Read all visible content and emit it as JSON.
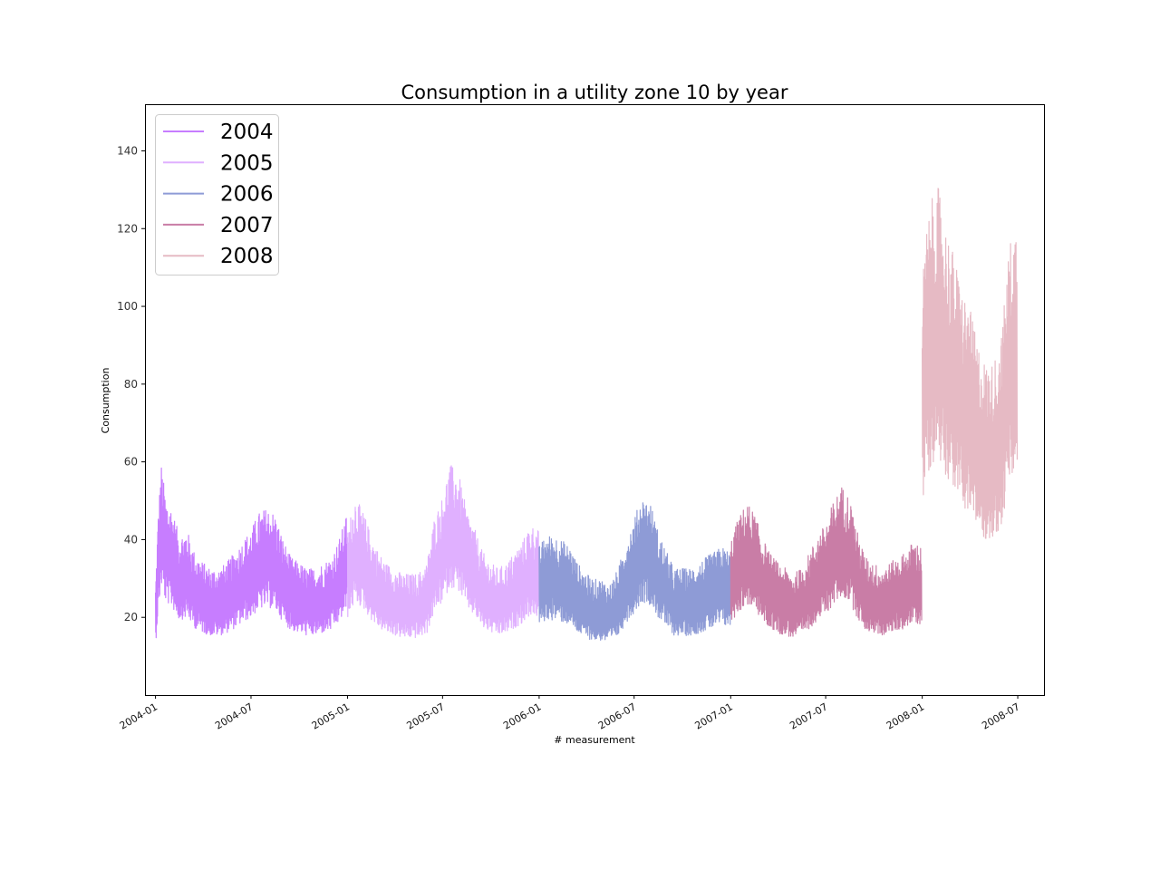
{
  "chart_data": {
    "type": "line",
    "title": "Consumption in a utility zone 10 by year",
    "xlabel": "# measurement",
    "ylabel": "Consumption",
    "x_ticks": [
      "2004-01",
      "2004-07",
      "2005-01",
      "2005-07",
      "2006-01",
      "2006-07",
      "2007-01",
      "2007-07",
      "2008-01",
      "2008-07"
    ],
    "y_ticks": [
      20,
      40,
      60,
      80,
      100,
      120,
      140
    ],
    "xlim": [
      "2003-12-12",
      "2008-08-20"
    ],
    "ylim": [
      0,
      152
    ],
    "grid": false,
    "legend_position": "top-left",
    "series": [
      {
        "name": "2004",
        "color": "#c77dff",
        "points": [
          [
            "2004-01-01",
            20
          ],
          [
            "2004-01-06",
            33
          ],
          [
            "2004-01-12",
            42
          ],
          [
            "2004-01-20",
            36
          ],
          [
            "2004-02-01",
            34
          ],
          [
            "2004-02-15",
            29
          ],
          [
            "2004-03-01",
            30
          ],
          [
            "2004-03-15",
            26
          ],
          [
            "2004-04-01",
            24
          ],
          [
            "2004-04-15",
            23
          ],
          [
            "2004-05-01",
            23
          ],
          [
            "2004-05-15",
            24
          ],
          [
            "2004-06-01",
            26
          ],
          [
            "2004-06-15",
            28
          ],
          [
            "2004-07-01",
            30
          ],
          [
            "2004-07-15",
            33
          ],
          [
            "2004-08-01",
            34
          ],
          [
            "2004-08-15",
            33
          ],
          [
            "2004-09-01",
            28
          ],
          [
            "2004-09-15",
            25
          ],
          [
            "2004-10-01",
            24
          ],
          [
            "2004-10-15",
            23
          ],
          [
            "2004-11-01",
            23
          ],
          [
            "2004-11-15",
            24
          ],
          [
            "2004-12-01",
            25
          ],
          [
            "2004-12-15",
            28
          ],
          [
            "2004-12-31",
            33
          ]
        ]
      },
      {
        "name": "2005",
        "color": "#e0b0ff",
        "points": [
          [
            "2005-01-01",
            30
          ],
          [
            "2005-01-15",
            36
          ],
          [
            "2005-02-01",
            33
          ],
          [
            "2005-02-15",
            29
          ],
          [
            "2005-03-01",
            26
          ],
          [
            "2005-03-15",
            24
          ],
          [
            "2005-04-01",
            23
          ],
          [
            "2005-04-15",
            22
          ],
          [
            "2005-05-01",
            22
          ],
          [
            "2005-05-15",
            22
          ],
          [
            "2005-06-01",
            24
          ],
          [
            "2005-06-15",
            32
          ],
          [
            "2005-07-01",
            36
          ],
          [
            "2005-07-15",
            42
          ],
          [
            "2005-08-01",
            40
          ],
          [
            "2005-08-15",
            34
          ],
          [
            "2005-09-01",
            30
          ],
          [
            "2005-09-15",
            26
          ],
          [
            "2005-10-01",
            24
          ],
          [
            "2005-10-15",
            23
          ],
          [
            "2005-11-01",
            24
          ],
          [
            "2005-11-15",
            26
          ],
          [
            "2005-12-01",
            28
          ],
          [
            "2005-12-15",
            31
          ],
          [
            "2005-12-31",
            30
          ]
        ]
      },
      {
        "name": "2006",
        "color": "#8e9bd6",
        "points": [
          [
            "2006-01-01",
            27
          ],
          [
            "2006-01-15",
            29
          ],
          [
            "2006-02-01",
            29
          ],
          [
            "2006-02-15",
            28
          ],
          [
            "2006-03-01",
            27
          ],
          [
            "2006-03-15",
            24
          ],
          [
            "2006-04-01",
            22
          ],
          [
            "2006-04-15",
            21
          ],
          [
            "2006-05-01",
            21
          ],
          [
            "2006-05-15",
            20
          ],
          [
            "2006-06-01",
            23
          ],
          [
            "2006-06-15",
            28
          ],
          [
            "2006-07-01",
            32
          ],
          [
            "2006-07-15",
            36
          ],
          [
            "2006-08-01",
            35
          ],
          [
            "2006-08-15",
            30
          ],
          [
            "2006-09-01",
            26
          ],
          [
            "2006-09-15",
            23
          ],
          [
            "2006-10-01",
            23
          ],
          [
            "2006-10-15",
            23
          ],
          [
            "2006-11-01",
            24
          ],
          [
            "2006-11-15",
            25
          ],
          [
            "2006-12-01",
            26
          ],
          [
            "2006-12-15",
            27
          ],
          [
            "2006-12-31",
            26
          ]
        ]
      },
      {
        "name": "2007",
        "color": "#c97da6",
        "points": [
          [
            "2007-01-01",
            28
          ],
          [
            "2007-01-15",
            32
          ],
          [
            "2007-02-01",
            35
          ],
          [
            "2007-02-15",
            33
          ],
          [
            "2007-03-01",
            29
          ],
          [
            "2007-03-15",
            26
          ],
          [
            "2007-04-01",
            24
          ],
          [
            "2007-04-15",
            23
          ],
          [
            "2007-05-01",
            22
          ],
          [
            "2007-05-15",
            23
          ],
          [
            "2007-06-01",
            26
          ],
          [
            "2007-06-15",
            29
          ],
          [
            "2007-07-01",
            31
          ],
          [
            "2007-07-15",
            35
          ],
          [
            "2007-08-01",
            38
          ],
          [
            "2007-08-15",
            36
          ],
          [
            "2007-09-01",
            29
          ],
          [
            "2007-09-15",
            25
          ],
          [
            "2007-10-01",
            24
          ],
          [
            "2007-10-15",
            23
          ],
          [
            "2007-11-01",
            24
          ],
          [
            "2007-11-15",
            25
          ],
          [
            "2007-12-01",
            26
          ],
          [
            "2007-12-15",
            28
          ],
          [
            "2007-12-31",
            27
          ]
        ]
      },
      {
        "name": "2008",
        "color": "#e6bac4",
        "points": [
          [
            "2008-01-01",
            75
          ],
          [
            "2008-01-10",
            85
          ],
          [
            "2008-01-20",
            90
          ],
          [
            "2008-02-01",
            92
          ],
          [
            "2008-02-15",
            85
          ],
          [
            "2008-03-01",
            80
          ],
          [
            "2008-03-15",
            74
          ],
          [
            "2008-04-01",
            70
          ],
          [
            "2008-04-15",
            64
          ],
          [
            "2008-05-01",
            60
          ],
          [
            "2008-05-15",
            60
          ],
          [
            "2008-06-01",
            66
          ],
          [
            "2008-06-15",
            82
          ],
          [
            "2008-06-30",
            86
          ]
        ]
      }
    ]
  }
}
